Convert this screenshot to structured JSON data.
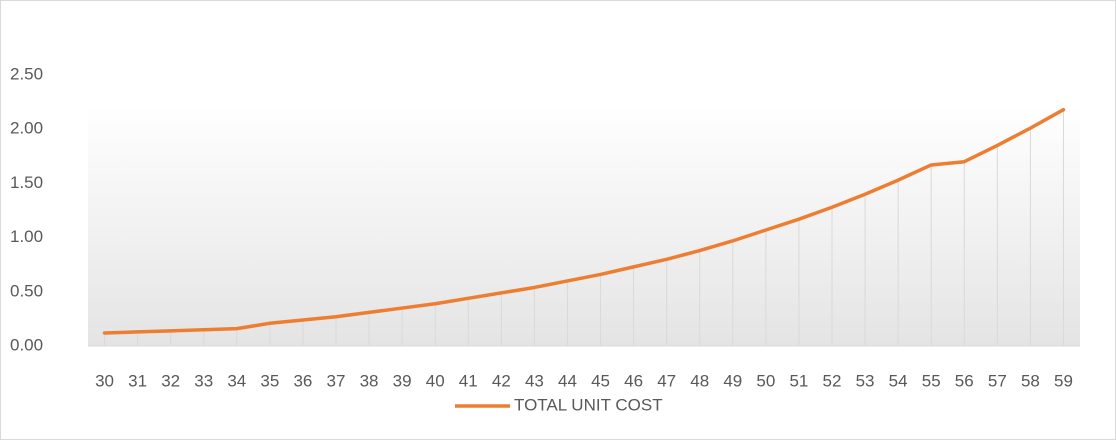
{
  "chart_data": {
    "type": "line",
    "categories": [
      "30",
      "31",
      "32",
      "33",
      "34",
      "35",
      "36",
      "37",
      "38",
      "39",
      "40",
      "41",
      "42",
      "43",
      "44",
      "45",
      "46",
      "47",
      "48",
      "49",
      "50",
      "51",
      "52",
      "53",
      "54",
      "55",
      "56",
      "57",
      "58",
      "59"
    ],
    "series": [
      {
        "name": "TOTAL UNIT COST",
        "color": "#ed7d31",
        "values": [
          0.12,
          0.13,
          0.14,
          0.15,
          0.16,
          0.21,
          0.24,
          0.27,
          0.31,
          0.35,
          0.39,
          0.44,
          0.49,
          0.54,
          0.6,
          0.66,
          0.73,
          0.8,
          0.88,
          0.97,
          1.07,
          1.17,
          1.28,
          1.4,
          1.53,
          1.67,
          1.7,
          1.85,
          2.01,
          2.18
        ]
      }
    ],
    "ylim": [
      0,
      2.5
    ],
    "yticks": [
      {
        "value": 0,
        "label": "0.00"
      },
      {
        "value": 0.5,
        "label": "0.50"
      },
      {
        "value": 1,
        "label": "1.00"
      },
      {
        "value": 1.5,
        "label": "1.50"
      },
      {
        "value": 2,
        "label": "2.00"
      },
      {
        "value": 2.5,
        "label": "2.50"
      }
    ],
    "drop_lines": true,
    "legend": "bottom"
  }
}
